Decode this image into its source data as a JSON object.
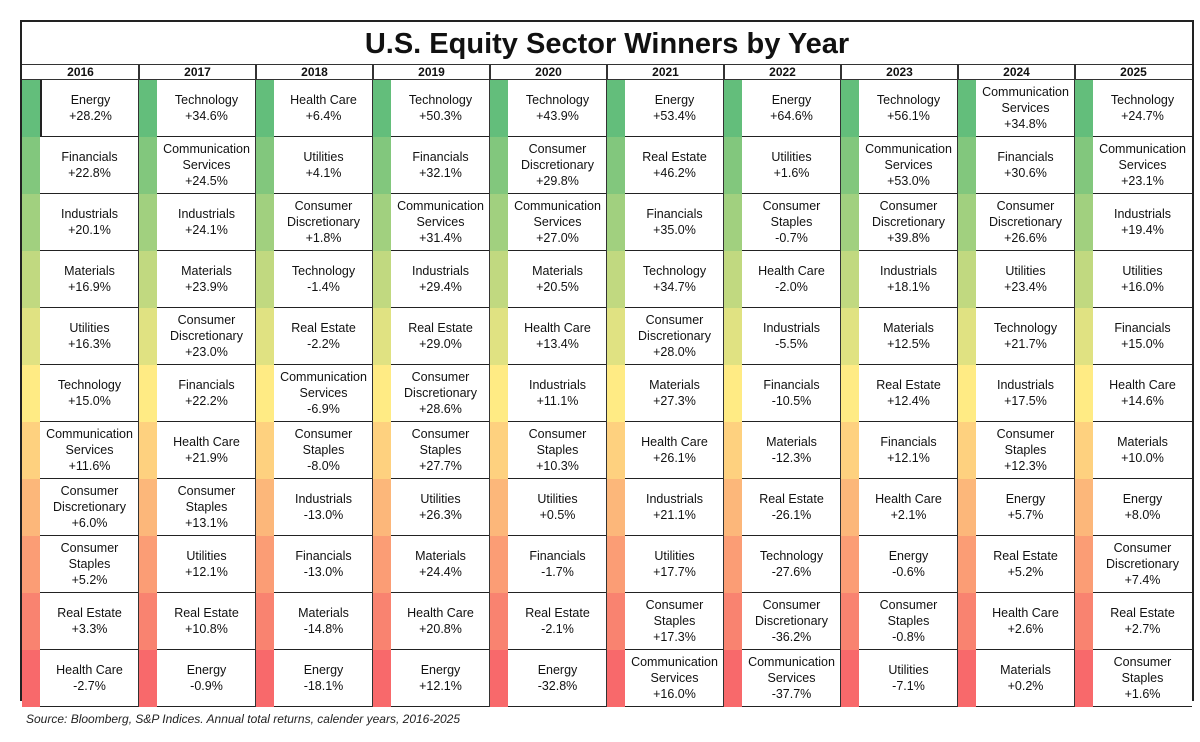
{
  "chart_data": {
    "type": "table",
    "title": "U.S. Equity Sector Winners by Year",
    "source": "Source:  Bloomberg, S&P Indices. Annual total returns, calender years, 2016-2025",
    "colors": {
      "scale_best": "#63be7b",
      "scale_mid": "#ffeb84",
      "scale_worst": "#f8696b"
    },
    "years": [
      {
        "year": "2016",
        "ranks": [
          {
            "sector": "Energy",
            "return": "+28.2%",
            "value": 28.2
          },
          {
            "sector": "Financials",
            "return": "+22.8%",
            "value": 22.8
          },
          {
            "sector": "Industrials",
            "return": "+20.1%",
            "value": 20.1
          },
          {
            "sector": "Materials",
            "return": "+16.9%",
            "value": 16.9
          },
          {
            "sector": "Utilities",
            "return": "+16.3%",
            "value": 16.3
          },
          {
            "sector": "Technology",
            "return": "+15.0%",
            "value": 15.0
          },
          {
            "sector": "Communication\nServices",
            "return": "+11.6%",
            "value": 11.6
          },
          {
            "sector": "Consumer\nDiscretionary",
            "return": "+6.0%",
            "value": 6.0
          },
          {
            "sector": "Consumer\nStaples",
            "return": "+5.2%",
            "value": 5.2
          },
          {
            "sector": "Real Estate",
            "return": "+3.3%",
            "value": 3.3
          },
          {
            "sector": "Health Care",
            "return": "-2.7%",
            "value": -2.7
          }
        ]
      },
      {
        "year": "2017",
        "ranks": [
          {
            "sector": "Technology",
            "return": "+34.6%",
            "value": 34.6
          },
          {
            "sector": "Communication\nServices",
            "return": "+24.5%",
            "value": 24.5
          },
          {
            "sector": "Industrials",
            "return": "+24.1%",
            "value": 24.1
          },
          {
            "sector": "Materials",
            "return": "+23.9%",
            "value": 23.9
          },
          {
            "sector": "Consumer\nDiscretionary",
            "return": "+23.0%",
            "value": 23.0
          },
          {
            "sector": "Financials",
            "return": "+22.2%",
            "value": 22.2
          },
          {
            "sector": "Health Care",
            "return": "+21.9%",
            "value": 21.9
          },
          {
            "sector": "Consumer\nStaples",
            "return": "+13.1%",
            "value": 13.1
          },
          {
            "sector": "Utilities",
            "return": "+12.1%",
            "value": 12.1
          },
          {
            "sector": "Real Estate",
            "return": "+10.8%",
            "value": 10.8
          },
          {
            "sector": "Energy",
            "return": "-0.9%",
            "value": -0.9
          }
        ]
      },
      {
        "year": "2018",
        "ranks": [
          {
            "sector": "Health Care",
            "return": "+6.4%",
            "value": 6.4
          },
          {
            "sector": "Utilities",
            "return": "+4.1%",
            "value": 4.1
          },
          {
            "sector": "Consumer\nDiscretionary",
            "return": "+1.8%",
            "value": 1.8
          },
          {
            "sector": "Technology",
            "return": "-1.4%",
            "value": -1.4
          },
          {
            "sector": "Real Estate",
            "return": "-2.2%",
            "value": -2.2
          },
          {
            "sector": "Communication\nServices",
            "return": "-6.9%",
            "value": -6.9
          },
          {
            "sector": "Consumer\nStaples",
            "return": "-8.0%",
            "value": -8.0
          },
          {
            "sector": "Industrials",
            "return": "-13.0%",
            "value": -13.0
          },
          {
            "sector": "Financials",
            "return": "-13.0%",
            "value": -13.0
          },
          {
            "sector": "Materials",
            "return": "-14.8%",
            "value": -14.8
          },
          {
            "sector": "Energy",
            "return": "-18.1%",
            "value": -18.1
          }
        ]
      },
      {
        "year": "2019",
        "ranks": [
          {
            "sector": "Technology",
            "return": "+50.3%",
            "value": 50.3
          },
          {
            "sector": "Financials",
            "return": "+32.1%",
            "value": 32.1
          },
          {
            "sector": "Communication\nServices",
            "return": "+31.4%",
            "value": 31.4
          },
          {
            "sector": "Industrials",
            "return": "+29.4%",
            "value": 29.4
          },
          {
            "sector": "Real Estate",
            "return": "+29.0%",
            "value": 29.0
          },
          {
            "sector": "Consumer\nDiscretionary",
            "return": "+28.6%",
            "value": 28.6
          },
          {
            "sector": "Consumer\nStaples",
            "return": "+27.7%",
            "value": 27.7
          },
          {
            "sector": "Utilities",
            "return": "+26.3%",
            "value": 26.3
          },
          {
            "sector": "Materials",
            "return": "+24.4%",
            "value": 24.4
          },
          {
            "sector": "Health Care",
            "return": "+20.8%",
            "value": 20.8
          },
          {
            "sector": "Energy",
            "return": "+12.1%",
            "value": 12.1
          }
        ]
      },
      {
        "year": "2020",
        "ranks": [
          {
            "sector": "Technology",
            "return": "+43.9%",
            "value": 43.9
          },
          {
            "sector": "Consumer\nDiscretionary",
            "return": "+29.8%",
            "value": 29.8
          },
          {
            "sector": "Communication\nServices",
            "return": "+27.0%",
            "value": 27.0
          },
          {
            "sector": "Materials",
            "return": "+20.5%",
            "value": 20.5
          },
          {
            "sector": "Health Care",
            "return": "+13.4%",
            "value": 13.4
          },
          {
            "sector": "Industrials",
            "return": "+11.1%",
            "value": 11.1
          },
          {
            "sector": "Consumer\nStaples",
            "return": "+10.3%",
            "value": 10.3
          },
          {
            "sector": "Utilities",
            "return": "+0.5%",
            "value": 0.5
          },
          {
            "sector": "Financials",
            "return": "-1.7%",
            "value": -1.7
          },
          {
            "sector": "Real Estate",
            "return": "-2.1%",
            "value": -2.1
          },
          {
            "sector": "Energy",
            "return": "-32.8%",
            "value": -32.8
          }
        ]
      },
      {
        "year": "2021",
        "ranks": [
          {
            "sector": "Energy",
            "return": "+53.4%",
            "value": 53.4
          },
          {
            "sector": "Real Estate",
            "return": "+46.2%",
            "value": 46.2
          },
          {
            "sector": "Financials",
            "return": "+35.0%",
            "value": 35.0
          },
          {
            "sector": "Technology",
            "return": "+34.7%",
            "value": 34.7
          },
          {
            "sector": "Consumer\nDiscretionary",
            "return": "+28.0%",
            "value": 28.0
          },
          {
            "sector": "Materials",
            "return": "+27.3%",
            "value": 27.3
          },
          {
            "sector": "Health Care",
            "return": "+26.1%",
            "value": 26.1
          },
          {
            "sector": "Industrials",
            "return": "+21.1%",
            "value": 21.1
          },
          {
            "sector": "Utilities",
            "return": "+17.7%",
            "value": 17.7
          },
          {
            "sector": "Consumer\nStaples",
            "return": "+17.3%",
            "value": 17.3
          },
          {
            "sector": "Communication\nServices",
            "return": "+16.0%",
            "value": 16.0
          }
        ]
      },
      {
        "year": "2022",
        "ranks": [
          {
            "sector": "Energy",
            "return": "+64.6%",
            "value": 64.6
          },
          {
            "sector": "Utilities",
            "return": "+1.6%",
            "value": 1.6
          },
          {
            "sector": "Consumer\nStaples",
            "return": "-0.7%",
            "value": -0.7
          },
          {
            "sector": "Health Care",
            "return": "-2.0%",
            "value": -2.0
          },
          {
            "sector": "Industrials",
            "return": "-5.5%",
            "value": -5.5
          },
          {
            "sector": "Financials",
            "return": "-10.5%",
            "value": -10.5
          },
          {
            "sector": "Materials",
            "return": "-12.3%",
            "value": -12.3
          },
          {
            "sector": "Real Estate",
            "return": "-26.1%",
            "value": -26.1
          },
          {
            "sector": "Technology",
            "return": "-27.6%",
            "value": -27.6
          },
          {
            "sector": "Consumer\nDiscretionary",
            "return": "-36.2%",
            "value": -36.2
          },
          {
            "sector": "Communication\nServices",
            "return": "-37.7%",
            "value": -37.7
          }
        ]
      },
      {
        "year": "2023",
        "ranks": [
          {
            "sector": "Technology",
            "return": "+56.1%",
            "value": 56.1
          },
          {
            "sector": "Communication\nServices",
            "return": "+53.0%",
            "value": 53.0
          },
          {
            "sector": "Consumer\nDiscretionary",
            "return": "+39.8%",
            "value": 39.8
          },
          {
            "sector": "Industrials",
            "return": "+18.1%",
            "value": 18.1
          },
          {
            "sector": "Materials",
            "return": "+12.5%",
            "value": 12.5
          },
          {
            "sector": "Real Estate",
            "return": "+12.4%",
            "value": 12.4
          },
          {
            "sector": "Financials",
            "return": "+12.1%",
            "value": 12.1
          },
          {
            "sector": "Health Care",
            "return": "+2.1%",
            "value": 2.1
          },
          {
            "sector": "Energy",
            "return": "-0.6%",
            "value": -0.6
          },
          {
            "sector": "Consumer\nStaples",
            "return": "-0.8%",
            "value": -0.8
          },
          {
            "sector": "Utilities",
            "return": "-7.1%",
            "value": -7.1
          }
        ]
      },
      {
        "year": "2024",
        "ranks": [
          {
            "sector": "Communication\nServices",
            "return": "+34.8%",
            "value": 34.8
          },
          {
            "sector": "Financials",
            "return": "+30.6%",
            "value": 30.6
          },
          {
            "sector": "Consumer\nDiscretionary",
            "return": "+26.6%",
            "value": 26.6
          },
          {
            "sector": "Utilities",
            "return": "+23.4%",
            "value": 23.4
          },
          {
            "sector": "Technology",
            "return": "+21.7%",
            "value": 21.7
          },
          {
            "sector": "Industrials",
            "return": "+17.5%",
            "value": 17.5
          },
          {
            "sector": "Consumer\nStaples",
            "return": "+12.3%",
            "value": 12.3
          },
          {
            "sector": "Energy",
            "return": "+5.7%",
            "value": 5.7
          },
          {
            "sector": "Real Estate",
            "return": "+5.2%",
            "value": 5.2
          },
          {
            "sector": "Health Care",
            "return": "+2.6%",
            "value": 2.6
          },
          {
            "sector": "Materials",
            "return": "+0.2%",
            "value": 0.2
          }
        ]
      },
      {
        "year": "2025",
        "ranks": [
          {
            "sector": "Technology",
            "return": "+24.7%",
            "value": 24.7
          },
          {
            "sector": "Communication\nServices",
            "return": "+23.1%",
            "value": 23.1
          },
          {
            "sector": "Industrials",
            "return": "+19.4%",
            "value": 19.4
          },
          {
            "sector": "Utilities",
            "return": "+16.0%",
            "value": 16.0
          },
          {
            "sector": "Financials",
            "return": "+15.0%",
            "value": 15.0
          },
          {
            "sector": "Health Care",
            "return": "+14.6%",
            "value": 14.6
          },
          {
            "sector": "Materials",
            "return": "+10.0%",
            "value": 10.0
          },
          {
            "sector": "Energy",
            "return": "+8.0%",
            "value": 8.0
          },
          {
            "sector": "Consumer\nDiscretionary",
            "return": "+7.4%",
            "value": 7.4
          },
          {
            "sector": "Real Estate",
            "return": "+2.7%",
            "value": 2.7
          },
          {
            "sector": "Consumer\nStaples",
            "return": "+1.6%",
            "value": 1.6
          }
        ]
      }
    ]
  }
}
